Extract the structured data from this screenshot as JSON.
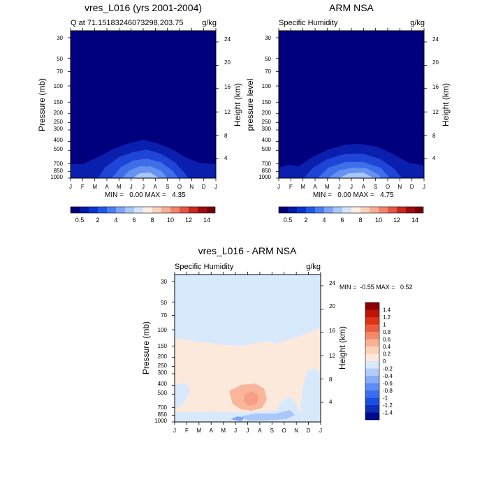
{
  "months": [
    "J",
    "F",
    "M",
    "A",
    "M",
    "J",
    "J",
    "A",
    "S",
    "O",
    "N",
    "D",
    "J"
  ],
  "pressure_ticks": [
    30,
    50,
    70,
    100,
    150,
    200,
    250,
    300,
    400,
    500,
    700,
    850,
    1000
  ],
  "height_ticks": [
    4,
    8,
    12,
    16,
    20,
    24
  ],
  "colors": {
    "frame": "#000000",
    "abs_scale": [
      "#00007f",
      "#001aa6",
      "#0535d1",
      "#1f58e8",
      "#4a7ff2",
      "#7ba4f7",
      "#a9c8fa",
      "#d3e4fc",
      "#fdeee6",
      "#fbd3bd",
      "#f8b094",
      "#f2836b",
      "#e55642",
      "#c8281d",
      "#a10c0b",
      "#7a0000"
    ],
    "diff_scale": [
      "#000a8a",
      "#0c2fb8",
      "#1b4fe0",
      "#3a6df0",
      "#5f8cf5",
      "#89aef8",
      "#b3cdfb",
      "#d9e9fc",
      "#fde9dc",
      "#fcd2bb",
      "#f9b294",
      "#f28b6a",
      "#ea5e3f",
      "#dd3316",
      "#bb1508",
      "#8a0000"
    ]
  },
  "panels": [
    {
      "title": "vres_L016 (yrs 2001-2004)",
      "left_label": "Q at 71.15183246073298,203.75",
      "right_label": "g/kg",
      "ylabel": "Pressure (mb)",
      "ylabel_right": "Height (km)",
      "minmax": "MIN =   0.00 MAX =   4.35"
    },
    {
      "title": "ARM NSA",
      "left_label": "Specific Humidity",
      "right_label": "g/kg",
      "ylabel": "pressure level",
      "ylabel_right": "Height (km)",
      "minmax": "MIN =   0.00 MAX =   4.75"
    },
    {
      "title": "vres_L016 - ARM NSA",
      "left_label": "Specific Humidity",
      "right_label": "g/kg",
      "ylabel": "Pressure (mb)",
      "ylabel_right": "Height (km)",
      "minmax": "MIN =  -0.55 MAX =   0.52"
    }
  ],
  "colorbar_abs": {
    "labels": [
      "0.5",
      "2",
      "4",
      "6",
      "8",
      "10",
      "12",
      "14"
    ]
  },
  "colorbar_diff": {
    "labels": [
      "1.4",
      "1.2",
      "1",
      "0.8",
      "0.6",
      "0.4",
      "0.2",
      "0",
      "-0.2",
      "-0.4",
      "-0.6",
      "-0.8",
      "-1",
      "-1.2",
      "-1.4"
    ]
  },
  "chart_data": [
    {
      "type": "heatmap",
      "title": "vres_L016 (yrs 2001-2004)",
      "subtitle": "Q at 71.15183246073298,203.75",
      "units": "g/kg",
      "xlabel": "",
      "ylabel": "Pressure (mb)",
      "ylabel_right": "Height (km)",
      "x": [
        "J",
        "F",
        "M",
        "A",
        "M",
        "J",
        "J",
        "A",
        "S",
        "O",
        "N",
        "D",
        "J"
      ],
      "y_scale": "log",
      "ylim": [
        1000,
        30
      ],
      "min": 0.0,
      "max": 4.35,
      "contour_levels": [
        0.5,
        1,
        1.5,
        2,
        2.5,
        3,
        3.5,
        4
      ],
      "approx_top_of_moist_layer_mb": [
        690,
        690,
        670,
        610,
        520,
        440,
        410,
        430,
        530,
        650,
        690,
        690,
        690
      ]
    },
    {
      "type": "heatmap",
      "title": "ARM NSA",
      "subtitle": "Specific Humidity",
      "units": "g/kg",
      "ylabel": "pressure level",
      "ylabel_right": "Height (km)",
      "x": [
        "J",
        "F",
        "M",
        "A",
        "M",
        "J",
        "J",
        "A",
        "S",
        "O",
        "N",
        "D",
        "J"
      ],
      "y_scale": "log",
      "ylim": [
        1000,
        30
      ],
      "min": 0.0,
      "max": 4.75,
      "contour_levels": [
        0.5,
        1,
        1.5,
        2,
        2.5,
        3,
        3.5,
        4,
        4.5
      ],
      "approx_top_of_moist_layer_mb": [
        700,
        700,
        720,
        610,
        520,
        450,
        410,
        440,
        520,
        640,
        700,
        720,
        700
      ]
    },
    {
      "type": "heatmap",
      "title": "vres_L016 - ARM NSA",
      "subtitle": "Specific Humidity",
      "units": "g/kg",
      "ylabel": "Pressure (mb)",
      "ylabel_right": "Height (km)",
      "x": [
        "J",
        "F",
        "M",
        "A",
        "M",
        "J",
        "J",
        "A",
        "S",
        "O",
        "N",
        "D",
        "J"
      ],
      "y_scale": "log",
      "ylim": [
        1000,
        30
      ],
      "min": -0.55,
      "max": 0.52,
      "contour_levels": [
        -1.4,
        -1.2,
        -1,
        -0.8,
        -0.6,
        -0.4,
        -0.2,
        0,
        0.2,
        0.4,
        0.6,
        0.8,
        1,
        1.2,
        1.4
      ],
      "approx_boundary_upper_negative_region_mb": [
        130,
        135,
        140,
        150,
        150,
        140,
        130,
        125,
        120,
        115,
        105,
        100,
        100
      ],
      "positive_max_region": {
        "months": [
          "J",
          "J",
          "A"
        ],
        "pressure_mb": [
          400,
          650
        ],
        "value": 0.4
      }
    }
  ]
}
